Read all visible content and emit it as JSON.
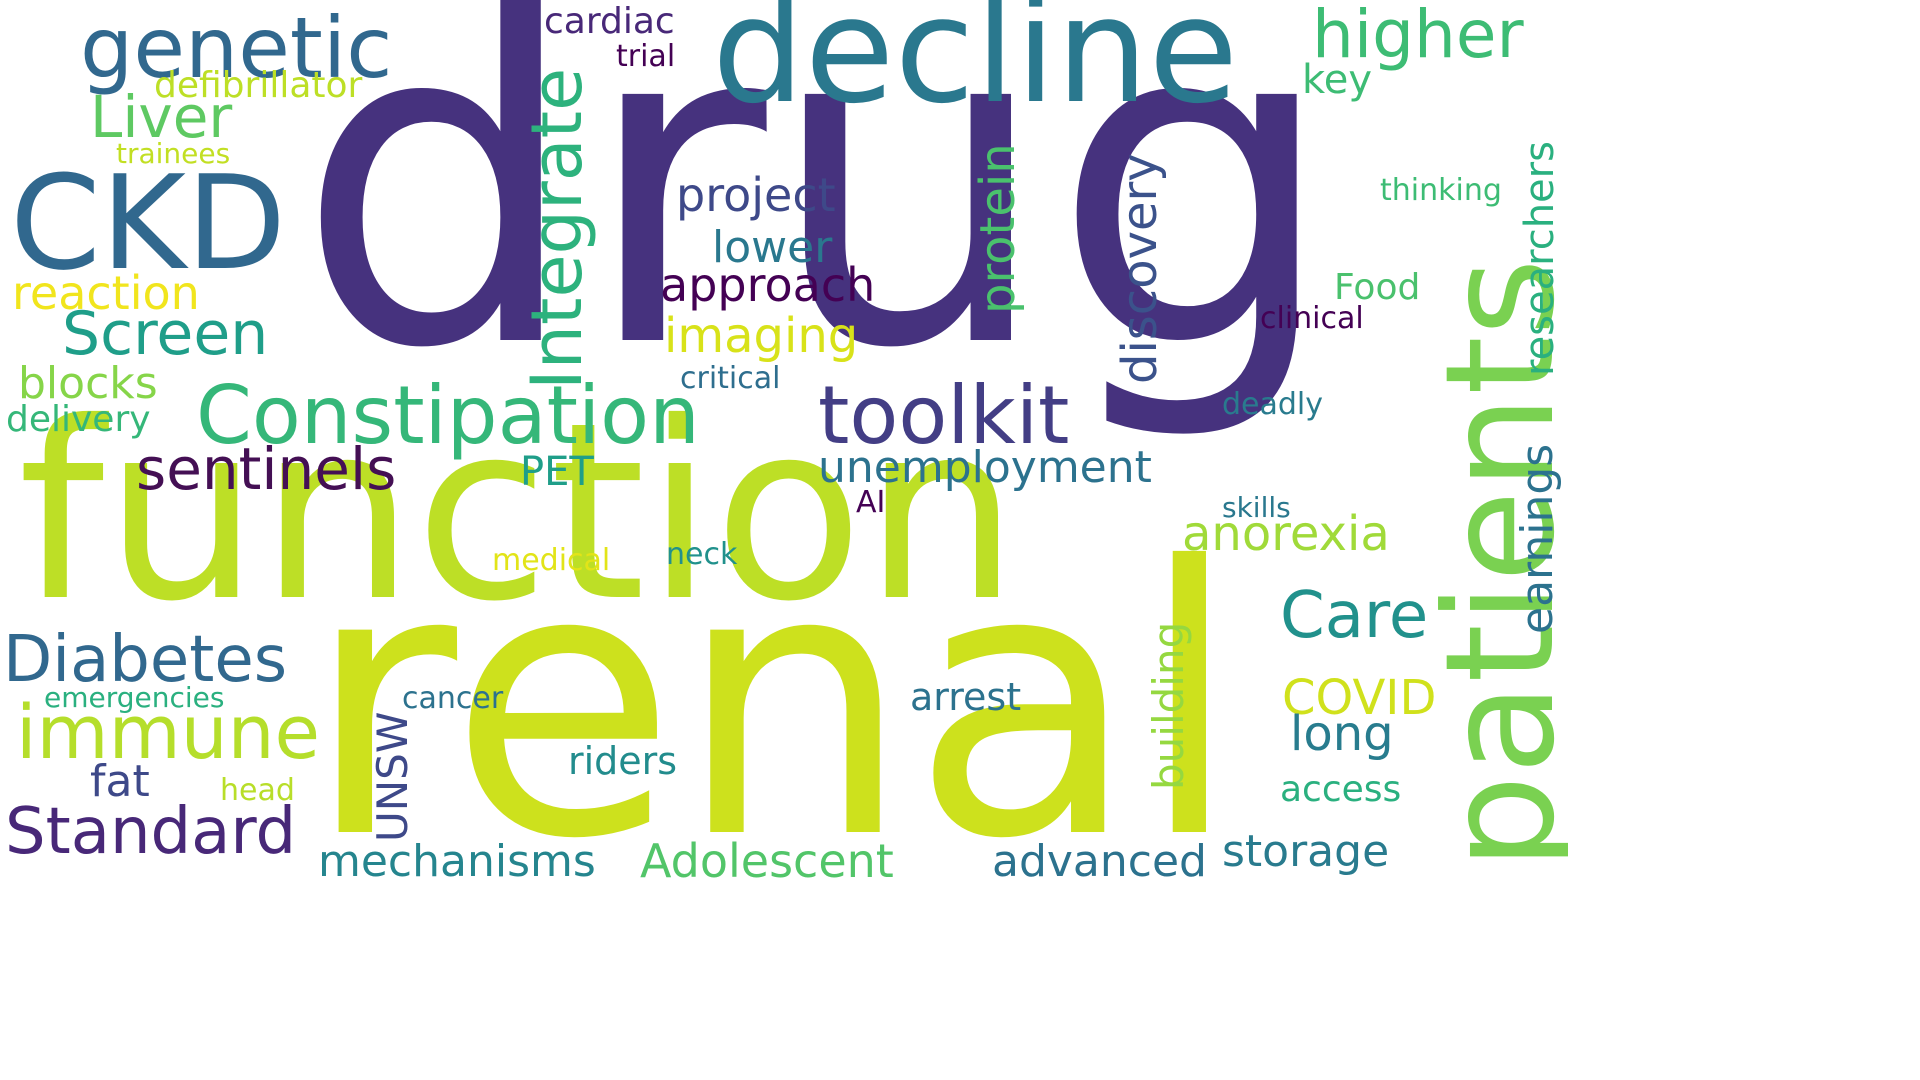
{
  "words": {
    "drug": {
      "text": "drug",
      "color": "#46327e"
    },
    "renal": {
      "text": "renal",
      "color": "#cde11d"
    },
    "function": {
      "text": "function",
      "color": "#bddf26"
    },
    "decline": {
      "text": "decline",
      "color": "#2a788e"
    },
    "patients": {
      "text": "patients",
      "color": "#7ad151"
    },
    "CKD": {
      "text": "CKD",
      "color": "#31688e"
    },
    "genetic": {
      "text": "genetic",
      "color": "#31688e"
    },
    "Constipation": {
      "text": "Constipation",
      "color": "#35b779"
    },
    "toolkit": {
      "text": "toolkit",
      "color": "#433e85"
    },
    "Integrate": {
      "text": "Integrate",
      "color": "#2db27d"
    },
    "higher": {
      "text": "higher",
      "color": "#3dbc74"
    },
    "Diabetes": {
      "text": "Diabetes",
      "color": "#31688e"
    },
    "immune": {
      "text": "immune",
      "color": "#b5de2b"
    },
    "Standard": {
      "text": "Standard",
      "color": "#482878"
    },
    "sentinels": {
      "text": "sentinels",
      "color": "#440f54"
    },
    "Screen": {
      "text": "Screen",
      "color": "#1f9e89"
    },
    "Liver": {
      "text": "Liver",
      "color": "#5ec962"
    },
    "Care": {
      "text": "Care",
      "color": "#21918c"
    },
    "unemployment": {
      "text": "unemployment",
      "color": "#2c728e"
    },
    "project": {
      "text": "project",
      "color": "#3e4989"
    },
    "approach": {
      "text": "approach",
      "color": "#440154"
    },
    "lower": {
      "text": "lower",
      "color": "#2a788e"
    },
    "imaging": {
      "text": "imaging",
      "color": "#d8e219"
    },
    "discovery": {
      "text": "discovery",
      "color": "#3b528b"
    },
    "protein": {
      "text": "protein",
      "color": "#4ac16d"
    },
    "researchers": {
      "text": "researchers",
      "color": "#2ab07f"
    },
    "earnings": {
      "text": "earnings",
      "color": "#2c728e"
    },
    "anorexia": {
      "text": "anorexia",
      "color": "#a0da39"
    },
    "COVID": {
      "text": "COVID",
      "color": "#d0e11c"
    },
    "long": {
      "text": "long",
      "color": "#287c8e"
    },
    "reaction": {
      "text": "reaction",
      "color": "#f1e51d"
    },
    "blocks": {
      "text": "blocks",
      "color": "#86d549"
    },
    "delivery": {
      "text": "delivery",
      "color": "#35b779"
    },
    "mechanisms": {
      "text": "mechanisms",
      "color": "#25858e"
    },
    "Adolescent": {
      "text": "Adolescent",
      "color": "#52c569"
    },
    "advanced": {
      "text": "advanced",
      "color": "#2c728e"
    },
    "storage": {
      "text": "storage",
      "color": "#297b8e"
    },
    "building": {
      "text": "building",
      "color": "#95d840"
    },
    "UNSW": {
      "text": "UNSW",
      "color": "#3e4989"
    },
    "arrest": {
      "text": "arrest",
      "color": "#2c728e"
    },
    "riders": {
      "text": "riders",
      "color": "#228c8d"
    },
    "fat": {
      "text": "fat",
      "color": "#3e4989"
    },
    "PET": {
      "text": "PET",
      "color": "#1f9e89"
    },
    "key": {
      "text": "key",
      "color": "#3dbc74"
    },
    "Food": {
      "text": "Food",
      "color": "#4ac16d"
    },
    "access": {
      "text": "access",
      "color": "#2ab07f"
    },
    "cardiac": {
      "text": "cardiac",
      "color": "#482878"
    },
    "trial": {
      "text": "trial",
      "color": "#440154"
    },
    "defibrillator": {
      "text": "defibrillator",
      "color": "#bddf26"
    },
    "trainees": {
      "text": "trainees",
      "color": "#c2df23"
    },
    "thinking": {
      "text": "thinking",
      "color": "#3dbc74"
    },
    "clinical": {
      "text": "clinical",
      "color": "#440154"
    },
    "critical": {
      "text": "critical",
      "color": "#2e6e8e"
    },
    "deadly": {
      "text": "deadly",
      "color": "#297b8e"
    },
    "AI": {
      "text": "AI",
      "color": "#440154"
    },
    "skills": {
      "text": "skills",
      "color": "#2a788e"
    },
    "medical": {
      "text": "medical",
      "color": "#e2e418"
    },
    "neck": {
      "text": "neck",
      "color": "#21918c"
    },
    "emergencies": {
      "text": "emergencies",
      "color": "#2ab07f"
    },
    "cancer": {
      "text": "cancer",
      "color": "#2c728e"
    },
    "head": {
      "text": "head",
      "color": "#b8de29"
    }
  }
}
